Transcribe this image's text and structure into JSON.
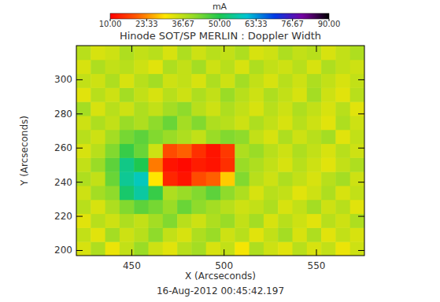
{
  "chart_data": {
    "type": "heatmap",
    "title": "Hinode SOT/SP   MERLIN : Doppler Width",
    "subtitle": "16-Aug-2012 00:45:42.197",
    "x_label": "X (Arcseconds)",
    "y_label": "Y (Arcseconds)",
    "xlim": [
      420,
      576
    ],
    "ylim": [
      197,
      320
    ],
    "xticks": [
      450,
      500,
      550
    ],
    "yticks": [
      200,
      220,
      240,
      260,
      280,
      300
    ],
    "xbins": [
      420,
      427.8,
      435.6,
      443.4,
      451.2,
      459,
      466.8,
      474.6,
      482.4,
      490.2,
      498,
      505.8,
      513.6,
      521.4,
      529.2,
      537,
      544.8,
      552.6,
      560.4,
      568.2,
      576
    ],
    "ybins": [
      197,
      205.2,
      213.4,
      221.6,
      229.8,
      238,
      246.2,
      254.4,
      262.6,
      270.8,
      279,
      287.2,
      295.4,
      303.6,
      311.8,
      320
    ],
    "values": [
      [
        34,
        38,
        32,
        36,
        40,
        35,
        33,
        37,
        39,
        34,
        36,
        31,
        38,
        35,
        33,
        37,
        34,
        36,
        32,
        35
      ],
      [
        36,
        33,
        39,
        35,
        37,
        41,
        36,
        34,
        38,
        40,
        35,
        37,
        33,
        36,
        39,
        34,
        38,
        33,
        36,
        34
      ],
      [
        33,
        37,
        35,
        38,
        36,
        39,
        42,
        37,
        35,
        38,
        40,
        36,
        39,
        34,
        37,
        35,
        33,
        37,
        35,
        38
      ],
      [
        37,
        34,
        38,
        42,
        45,
        43,
        40,
        44,
        41,
        39,
        37,
        35,
        36,
        38,
        34,
        36,
        39,
        35,
        37,
        33
      ],
      [
        35,
        39,
        41,
        52,
        56,
        48,
        38,
        40,
        42,
        45,
        41,
        38,
        34,
        37,
        36,
        33,
        35,
        38,
        34,
        36
      ],
      [
        38,
        36,
        44,
        55,
        58,
        30,
        14,
        12,
        18,
        20,
        28,
        42,
        37,
        35,
        38,
        36,
        34,
        37,
        39,
        35
      ],
      [
        36,
        40,
        45,
        54,
        50,
        22,
        12,
        11,
        13,
        12,
        15,
        40,
        38,
        36,
        34,
        37,
        35,
        33,
        36,
        38
      ],
      [
        34,
        37,
        42,
        48,
        44,
        35,
        18,
        20,
        15,
        12,
        16,
        38,
        40,
        37,
        35,
        38,
        36,
        34,
        37,
        35
      ],
      [
        37,
        35,
        39,
        43,
        45,
        42,
        40,
        38,
        36,
        40,
        42,
        41,
        36,
        34,
        38,
        35,
        37,
        39,
        33,
        36
      ],
      [
        35,
        38,
        36,
        40,
        38,
        41,
        44,
        39,
        42,
        38,
        37,
        35,
        38,
        36,
        34,
        37,
        35,
        33,
        38,
        35
      ],
      [
        39,
        34,
        37,
        35,
        38,
        36,
        39,
        41,
        37,
        35,
        38,
        36,
        34,
        37,
        35,
        38,
        36,
        34,
        37,
        33
      ],
      [
        33,
        37,
        35,
        39,
        36,
        34,
        37,
        35,
        38,
        36,
        40,
        37,
        35,
        38,
        36,
        34,
        39,
        35,
        33,
        37
      ],
      [
        36,
        35,
        38,
        34,
        37,
        39,
        35,
        36,
        34,
        38,
        35,
        39,
        36,
        34,
        37,
        35,
        38,
        36,
        34,
        36
      ],
      [
        34,
        38,
        36,
        37,
        35,
        33,
        38,
        36,
        39,
        35,
        37,
        34,
        38,
        36,
        35,
        37,
        34,
        38,
        36,
        35
      ],
      [
        37,
        34,
        35,
        38,
        36,
        37,
        34,
        38,
        35,
        37,
        36,
        38,
        34,
        35,
        38,
        36,
        37,
        34,
        36,
        38
      ]
    ],
    "colorbar": {
      "label": "mA",
      "range": [
        10,
        90
      ],
      "ticks": [
        {
          "value": 10,
          "label": "10.00"
        },
        {
          "value": 23.33,
          "label": "23.33"
        },
        {
          "value": 36.67,
          "label": "36.67"
        },
        {
          "value": 50,
          "label": "50.00"
        },
        {
          "value": 63.33,
          "label": "63.33"
        },
        {
          "value": 76.67,
          "label": "76.67"
        },
        {
          "value": 90,
          "label": "90.00"
        }
      ]
    }
  }
}
